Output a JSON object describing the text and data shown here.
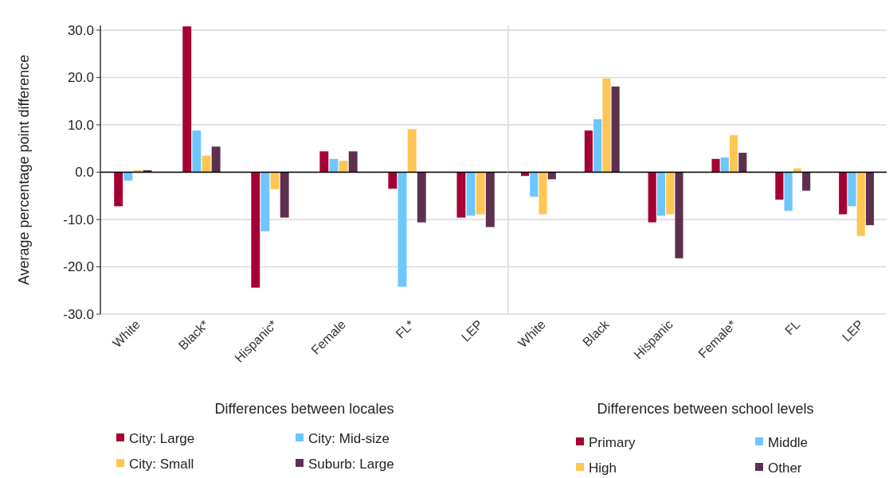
{
  "chart_data": [
    {
      "type": "bar",
      "ylabel": "Average percentage point difference",
      "xlabel": "Differences between locales",
      "categories": [
        "White",
        "Black*",
        "Hispanic*",
        "Female",
        "FL*",
        "LEP"
      ],
      "series": [
        {
          "name": "City: Large",
          "color": "#a50034",
          "values": [
            -7.2,
            30.8,
            -24.4,
            4.4,
            -3.5,
            -9.6
          ]
        },
        {
          "name": "City: Mid-size",
          "color": "#6ec6ff",
          "values": [
            -1.8,
            8.8,
            -12.5,
            2.8,
            -24.2,
            -9.2
          ]
        },
        {
          "name": "City: Small",
          "color": "#ffc555",
          "values": [
            0.4,
            3.5,
            -3.6,
            2.4,
            9.1,
            -8.9
          ]
        },
        {
          "name": "Suburb: Large",
          "color": "#5e3050",
          "values": [
            0.4,
            5.4,
            -9.6,
            4.4,
            -10.6,
            -11.6
          ]
        }
      ],
      "ylim": [
        -30,
        31
      ],
      "yticks": [
        {
          "value": -30,
          "label": "-30.0"
        },
        {
          "value": -20,
          "label": "-20.0"
        },
        {
          "value": -10,
          "label": "-10.0"
        },
        {
          "value": 0,
          "label": "0.0"
        },
        {
          "value": 10,
          "label": "10.0"
        },
        {
          "value": 20,
          "label": "20.0"
        },
        {
          "value": 30,
          "label": "30.0"
        }
      ],
      "grid": "y",
      "legend": "bottom"
    },
    {
      "type": "bar",
      "xlabel": "Differences between school levels",
      "categories": [
        "White",
        "Black",
        "Hispanic",
        "Female*",
        "FL",
        "LEP"
      ],
      "series": [
        {
          "name": "Primary",
          "color": "#a50034",
          "values": [
            -0.8,
            8.8,
            -10.6,
            2.8,
            -5.8,
            -8.9
          ]
        },
        {
          "name": "Middle",
          "color": "#6ec6ff",
          "values": [
            -5.2,
            11.2,
            -9.2,
            3.1,
            -8.2,
            -7.2
          ]
        },
        {
          "name": "High",
          "color": "#ffc555",
          "values": [
            -8.9,
            19.8,
            -8.9,
            7.8,
            0.8,
            -13.5
          ]
        },
        {
          "name": "Other",
          "color": "#5e3050",
          "values": [
            -1.5,
            18.1,
            -18.2,
            4.1,
            -3.9,
            -11.2
          ]
        }
      ],
      "ylim": [
        -30,
        31
      ],
      "grid": "y",
      "legend": "bottom",
      "tick_labels": "x"
    }
  ]
}
